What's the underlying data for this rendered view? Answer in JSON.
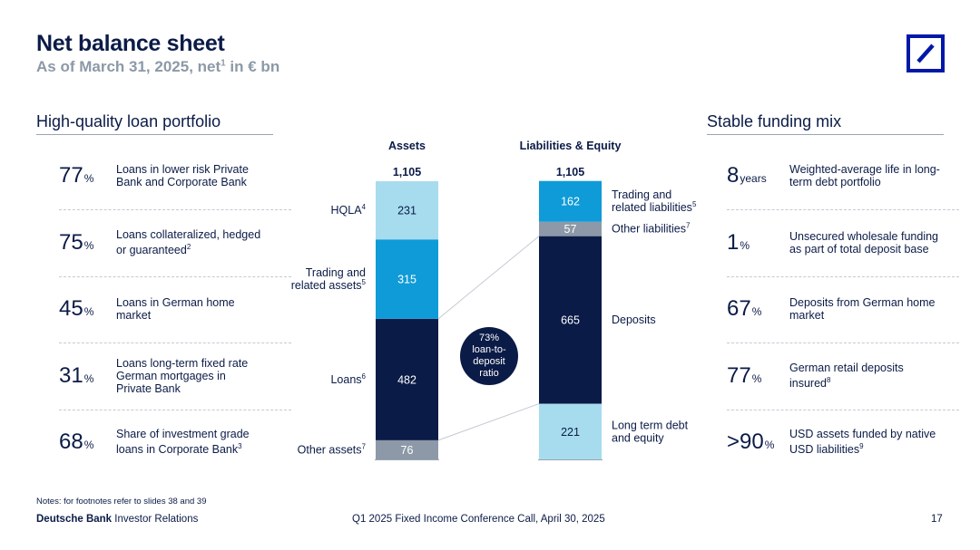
{
  "header": {
    "title": "Net balance sheet",
    "subtitle_pre": "As of March 31, 2025, net",
    "subtitle_sup": "1",
    "subtitle_post": " in € bn"
  },
  "logo": {
    "icon": "deutsche-bank-logo",
    "color": "#0018a8"
  },
  "left_panel": {
    "heading": "High-quality loan portfolio",
    "items": [
      {
        "value": "77",
        "unit": "%",
        "text": "Loans in lower risk Private Bank and Corporate Bank",
        "sup": ""
      },
      {
        "value": "75",
        "unit": "%",
        "text": "Loans collateralized, hedged or guaranteed",
        "sup": "2"
      },
      {
        "value": "45",
        "unit": "%",
        "text": "Loans in German home market",
        "sup": ""
      },
      {
        "value": "31",
        "unit": "%",
        "text": "Loans long-term fixed rate German mortgages in Private Bank",
        "sup": ""
      },
      {
        "value": "68",
        "unit": "%",
        "text": "Share of investment grade loans in Corporate Bank",
        "sup": "3"
      }
    ]
  },
  "right_panel": {
    "heading": "Stable funding mix",
    "items": [
      {
        "value": "8",
        "unit": "years",
        "text": "Weighted-average life in long-term debt portfolio",
        "sup": ""
      },
      {
        "value": "1",
        "unit": "%",
        "text": "Unsecured wholesale funding as part of total deposit base",
        "sup": ""
      },
      {
        "value": "67",
        "unit": "%",
        "text": "Deposits from German home market",
        "sup": ""
      },
      {
        "value": "77",
        "unit": "%",
        "text": "German retail deposits insured",
        "sup": "8"
      },
      {
        "value": ">90",
        "unit": "%",
        "text": "USD assets funded by native USD liabilities",
        "sup": "9"
      }
    ]
  },
  "chart_data": {
    "type": "bar",
    "stacked": true,
    "columns": [
      {
        "name": "Assets",
        "total": "1,105",
        "segments": [
          {
            "label": "Other assets",
            "sup": "7",
            "value": 76,
            "color": "#8d99a8",
            "text_color": "#ffffff"
          },
          {
            "label": "Loans",
            "sup": "6",
            "value": 482,
            "color": "#0b1b47",
            "text_color": "#ffffff"
          },
          {
            "label": "Trading and\nrelated assets",
            "sup": "5",
            "value": 315,
            "color": "#0f9bd7",
            "text_color": "#ffffff"
          },
          {
            "label": "HQLA",
            "sup": "4",
            "value": 231,
            "color": "#a6dcee",
            "text_color": "#0b1b47"
          }
        ]
      },
      {
        "name": "Liabilities & Equity",
        "total": "1,105",
        "segments": [
          {
            "label": "Long term debt\nand equity",
            "sup": "",
            "value": 221,
            "color": "#a6dcee",
            "text_color": "#0b1b47"
          },
          {
            "label": "Deposits",
            "sup": "",
            "value": 665,
            "color": "#0b1b47",
            "text_color": "#ffffff"
          },
          {
            "label": "Other liabilities",
            "sup": "7",
            "value": 57,
            "color": "#8d99a8",
            "text_color": "#ffffff"
          },
          {
            "label": "Trading and\nrelated liabilities",
            "sup": "5",
            "value": 162,
            "color": "#0f9bd7",
            "text_color": "#ffffff"
          }
        ]
      }
    ],
    "annotation": "73%\nloan-to-\ndeposit\nratio"
  },
  "footer": {
    "notes": "Notes: for footnotes refer to slides 38 and 39",
    "brand_bold": "Deutsche Bank",
    "brand_rest": " Investor Relations",
    "event": "Q1 2025 Fixed Income Conference Call, April 30, 2025",
    "page": "17"
  }
}
